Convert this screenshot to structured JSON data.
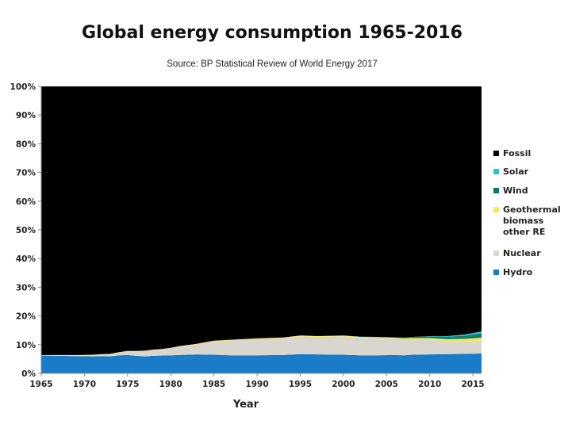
{
  "chart_data": {
    "type": "area",
    "stacked": true,
    "normalized": true,
    "title": "Global energy consumption 1965-2016",
    "subtitle": "Source: BP Statistical Review of World Energy 2017",
    "xlabel": "Year",
    "ylabel": "",
    "xlim": [
      1965,
      2016
    ],
    "ylim": [
      0,
      100
    ],
    "x_ticks": [
      1965,
      1970,
      1975,
      1980,
      1985,
      1990,
      1995,
      2000,
      2005,
      2010,
      2015
    ],
    "y_ticks": [
      "0%",
      "10%",
      "20%",
      "30%",
      "40%",
      "50%",
      "60%",
      "70%",
      "80%",
      "90%",
      "100%"
    ],
    "legend_position": "right",
    "x": [
      1965,
      1967,
      1969,
      1971,
      1972,
      1973,
      1974,
      1975,
      1976,
      1977,
      1978,
      1979,
      1980,
      1981,
      1983,
      1985,
      1987,
      1990,
      1993,
      1995,
      1997,
      2000,
      2002,
      2004,
      2006,
      2007,
      2008,
      2010,
      2012,
      2014,
      2016
    ],
    "series": [
      {
        "name": "Hydro",
        "color": "#1a7bc8",
        "values": [
          6.2,
          6.1,
          6.0,
          5.9,
          6.0,
          5.9,
          6.3,
          6.4,
          6.1,
          5.9,
          6.1,
          6.2,
          6.3,
          6.4,
          6.6,
          6.5,
          6.3,
          6.3,
          6.4,
          6.7,
          6.6,
          6.5,
          6.3,
          6.3,
          6.4,
          6.3,
          6.5,
          6.6,
          6.7,
          6.8,
          6.9
        ]
      },
      {
        "name": "Nuclear",
        "color": "#d9d6d0",
        "values": [
          0.1,
          0.2,
          0.3,
          0.5,
          0.6,
          0.8,
          1.0,
          1.3,
          1.6,
          1.9,
          2.1,
          2.2,
          2.5,
          3.0,
          3.5,
          4.7,
          5.2,
          5.6,
          5.8,
          6.2,
          6.1,
          6.4,
          6.1,
          6.0,
          5.7,
          5.5,
          5.4,
          5.1,
          4.4,
          4.3,
          4.4
        ]
      },
      {
        "name": "Geothermal biomass other RE",
        "color": "#f2e85a",
        "values": [
          0.1,
          0.1,
          0.1,
          0.1,
          0.1,
          0.1,
          0.1,
          0.1,
          0.1,
          0.1,
          0.1,
          0.1,
          0.1,
          0.1,
          0.2,
          0.2,
          0.2,
          0.3,
          0.3,
          0.3,
          0.3,
          0.3,
          0.3,
          0.3,
          0.3,
          0.4,
          0.4,
          0.6,
          0.8,
          0.9,
          1.1
        ]
      },
      {
        "name": "Wind",
        "color": "#0f7a6a",
        "values": [
          0,
          0,
          0,
          0,
          0,
          0,
          0,
          0,
          0,
          0,
          0,
          0,
          0,
          0,
          0,
          0,
          0,
          0,
          0,
          0,
          0,
          0,
          0.1,
          0.1,
          0.2,
          0.3,
          0.4,
          0.6,
          0.9,
          1.1,
          1.6
        ]
      },
      {
        "name": "Solar",
        "color": "#2cc2d6",
        "values": [
          0,
          0,
          0,
          0,
          0,
          0,
          0,
          0,
          0,
          0,
          0,
          0,
          0,
          0,
          0,
          0,
          0,
          0,
          0,
          0,
          0,
          0,
          0,
          0,
          0,
          0,
          0,
          0.1,
          0.2,
          0.4,
          0.6
        ]
      },
      {
        "name": "Fossil",
        "color": "#000000",
        "values": [
          93.6,
          93.6,
          93.6,
          93.5,
          93.3,
          93.2,
          92.6,
          92.2,
          92.2,
          92.1,
          91.7,
          91.5,
          91.1,
          90.5,
          89.7,
          88.6,
          88.3,
          87.8,
          87.5,
          86.8,
          87.0,
          86.8,
          87.2,
          87.3,
          87.4,
          87.5,
          87.3,
          87.0,
          87.0,
          86.5,
          85.4
        ]
      }
    ],
    "legend": [
      {
        "name": "Fossil",
        "color": "#000000"
      },
      {
        "name": "Solar",
        "color": "#2cc2d6"
      },
      {
        "name": "Wind",
        "color": "#0f7a6a"
      },
      {
        "name": "Geothermal biomass other RE",
        "lines": [
          "Geothermal",
          "biomass",
          "other RE"
        ],
        "color": "#f2e85a"
      },
      {
        "name": "Nuclear",
        "color": "#d9d6d0"
      },
      {
        "name": "Hydro",
        "color": "#1a7bc8"
      }
    ]
  }
}
